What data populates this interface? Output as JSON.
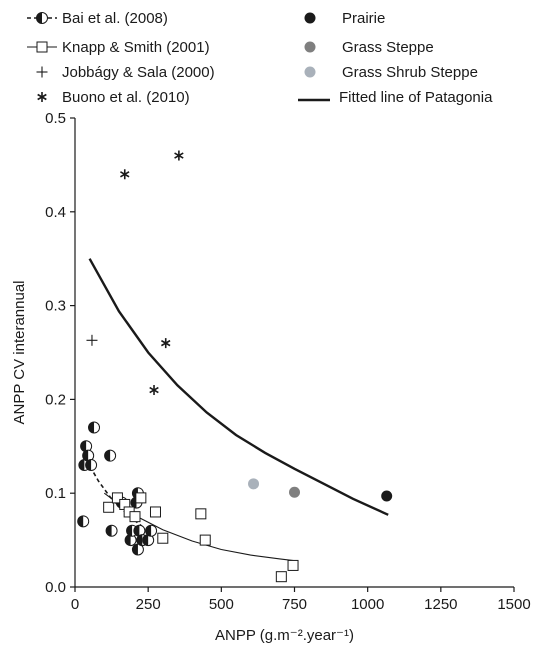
{
  "chart_data": {
    "type": "scatter",
    "xlabel": "ANPP (g.m⁻².year⁻¹)",
    "ylabel": "ANPP CV interannual",
    "xlim": [
      0,
      1500
    ],
    "ylim": [
      0,
      0.5
    ],
    "xticks": [
      0,
      250,
      500,
      750,
      1000,
      1250,
      1500
    ],
    "yticks": [
      0.0,
      0.1,
      0.2,
      0.3,
      0.4,
      0.5
    ],
    "xtick_labels": [
      "0",
      "250",
      "500",
      "750",
      "1000",
      "1250",
      "1500"
    ],
    "ytick_labels": [
      "0.0",
      "0.1",
      "0.2",
      "0.3",
      "0.4",
      "0.5"
    ],
    "grid": false,
    "legend": {
      "placement": "top",
      "entries": [
        {
          "key": "bai",
          "label": "Bai et al. (2008)",
          "marker": "half-filled-circle",
          "line": "dashed"
        },
        {
          "key": "knapp",
          "label": "Knapp & Smith (2001)",
          "marker": "open-square",
          "line": "solid"
        },
        {
          "key": "jobbagy",
          "label": "Jobbágy & Sala (2000)",
          "marker": "plus"
        },
        {
          "key": "buono",
          "label": "Buono et al. (2010)",
          "marker": "asterisk"
        },
        {
          "key": "prairie",
          "label": "Prairie",
          "marker": "filled-circle",
          "color": "#1a1a1a"
        },
        {
          "key": "grass_steppe",
          "label": "Grass Steppe",
          "marker": "filled-circle",
          "color": "#7f7f7f"
        },
        {
          "key": "grass_shrub_steppe",
          "label": "Grass Shrub Steppe",
          "marker": "filled-circle",
          "color": "#a9b1ba"
        },
        {
          "key": "fitted",
          "label": "Fitted line of Patagonia",
          "line": "solid-thick"
        }
      ]
    },
    "series": [
      {
        "name": "Bai et al. (2008)",
        "marker": "half-filled-circle",
        "points": [
          [
            28,
            0.07
          ],
          [
            32,
            0.13
          ],
          [
            38,
            0.15
          ],
          [
            45,
            0.14
          ],
          [
            55,
            0.13
          ],
          [
            65,
            0.17
          ],
          [
            120,
            0.14
          ],
          [
            125,
            0.06
          ],
          [
            160,
            0.09
          ],
          [
            190,
            0.05
          ],
          [
            195,
            0.06
          ],
          [
            210,
            0.09
          ],
          [
            215,
            0.1
          ],
          [
            215,
            0.04
          ],
          [
            220,
            0.06
          ],
          [
            230,
            0.05
          ],
          [
            250,
            0.05
          ],
          [
            260,
            0.06
          ]
        ],
        "trend": {
          "style": "dashed",
          "points": [
            [
              40,
              0.135
            ],
            [
              80,
              0.113
            ],
            [
              120,
              0.096
            ],
            [
              160,
              0.083
            ],
            [
              200,
              0.072
            ],
            [
              240,
              0.062
            ]
          ]
        }
      },
      {
        "name": "Knapp & Smith (2001)",
        "marker": "open-square",
        "points": [
          [
            115,
            0.085
          ],
          [
            145,
            0.095
          ],
          [
            170,
            0.088
          ],
          [
            185,
            0.08
          ],
          [
            205,
            0.075
          ],
          [
            225,
            0.095
          ],
          [
            275,
            0.08
          ],
          [
            300,
            0.052
          ],
          [
            430,
            0.078
          ],
          [
            445,
            0.05
          ],
          [
            705,
            0.011
          ],
          [
            745,
            0.023
          ]
        ],
        "trend": {
          "style": "solid",
          "points": [
            [
              100,
              0.1
            ],
            [
              200,
              0.077
            ],
            [
              300,
              0.061
            ],
            [
              400,
              0.049
            ],
            [
              500,
              0.04
            ],
            [
              600,
              0.034
            ],
            [
              700,
              0.03
            ],
            [
              750,
              0.028
            ]
          ]
        }
      },
      {
        "name": "Jobbágy & Sala (2000)",
        "marker": "plus",
        "points": [
          [
            58,
            0.263
          ]
        ]
      },
      {
        "name": "Buono et al. (2010)",
        "marker": "asterisk",
        "points": [
          [
            170,
            0.44
          ],
          [
            355,
            0.46
          ],
          [
            310,
            0.26
          ],
          [
            270,
            0.21
          ]
        ]
      },
      {
        "name": "Prairie",
        "marker": "filled-circle",
        "color": "#1a1a1a",
        "points": [
          [
            1065,
            0.097
          ]
        ]
      },
      {
        "name": "Grass Steppe",
        "marker": "filled-circle",
        "color": "#7f7f7f",
        "points": [
          [
            750,
            0.101
          ]
        ]
      },
      {
        "name": "Grass Shrub Steppe",
        "marker": "filled-circle",
        "color": "#a9b1ba",
        "points": [
          [
            610,
            0.11
          ]
        ]
      },
      {
        "name": "Fitted line of Patagonia",
        "line": "solid-thick",
        "points": [
          [
            50,
            0.35
          ],
          [
            150,
            0.294
          ],
          [
            250,
            0.25
          ],
          [
            350,
            0.215
          ],
          [
            450,
            0.186
          ],
          [
            550,
            0.162
          ],
          [
            650,
            0.143
          ],
          [
            750,
            0.126
          ],
          [
            850,
            0.11
          ],
          [
            950,
            0.094
          ],
          [
            1070,
            0.077
          ]
        ]
      }
    ]
  }
}
